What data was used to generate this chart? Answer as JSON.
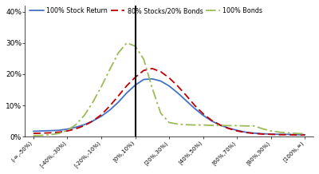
{
  "x_labels": [
    "(-∞,-50%)",
    "[-40%,-30%)",
    "[-20%,-10%)",
    "[0%,10%)",
    "[20%,30%)",
    "[40%,50%)",
    "[60%,70%)",
    "[80%,90%)",
    "[100%,∞)"
  ],
  "x_fine": [
    0,
    0.5,
    1.0,
    1.5,
    2.0,
    2.5,
    3.0,
    3.5,
    4.0,
    4.5,
    5.0,
    5.5,
    6.0,
    6.5,
    7.0,
    7.5,
    8.0,
    8.5,
    9.0,
    9.5,
    10.0,
    10.5,
    11.0,
    11.5,
    12.0,
    12.5,
    13.0,
    13.5,
    14.0,
    14.5,
    15.0,
    15.5,
    16.0
  ],
  "stock_100_y": [
    0.017,
    0.018,
    0.019,
    0.02,
    0.024,
    0.03,
    0.038,
    0.05,
    0.065,
    0.085,
    0.11,
    0.14,
    0.165,
    0.183,
    0.185,
    0.178,
    0.162,
    0.14,
    0.115,
    0.09,
    0.068,
    0.05,
    0.037,
    0.027,
    0.02,
    0.014,
    0.011,
    0.009,
    0.008,
    0.007,
    0.007,
    0.006,
    0.006
  ],
  "stocks80_bonds20_y": [
    0.01,
    0.011,
    0.012,
    0.014,
    0.018,
    0.025,
    0.035,
    0.05,
    0.07,
    0.098,
    0.13,
    0.163,
    0.19,
    0.212,
    0.218,
    0.208,
    0.188,
    0.162,
    0.132,
    0.1,
    0.073,
    0.052,
    0.037,
    0.026,
    0.018,
    0.013,
    0.01,
    0.008,
    0.007,
    0.006,
    0.006,
    0.005,
    0.005
  ],
  "bonds_100_y": [
    0.003,
    0.004,
    0.006,
    0.01,
    0.02,
    0.038,
    0.068,
    0.11,
    0.16,
    0.215,
    0.268,
    0.3,
    0.29,
    0.248,
    0.155,
    0.075,
    0.045,
    0.04,
    0.038,
    0.037,
    0.037,
    0.036,
    0.036,
    0.035,
    0.035,
    0.034,
    0.034,
    0.025,
    0.018,
    0.014,
    0.012,
    0.01,
    0.009
  ],
  "tick_positions": [
    0,
    2,
    4,
    6,
    8,
    10,
    12,
    14,
    16
  ],
  "vline_x": 6.0,
  "color_stock": "#4472C4",
  "color_bonds20": "#C00000",
  "color_bonds100": "#9BBB59",
  "ylim": [
    0,
    0.42
  ],
  "yticks": [
    0.0,
    0.1,
    0.2,
    0.3,
    0.4
  ],
  "ytick_labels": [
    "0%",
    "10%",
    "20%",
    "30%",
    "40%"
  ],
  "legend_labels": [
    "100% Stock Return",
    "80% Stocks/20% Bonds",
    "100% Bonds"
  ],
  "bg_color": "#FFFFFF"
}
